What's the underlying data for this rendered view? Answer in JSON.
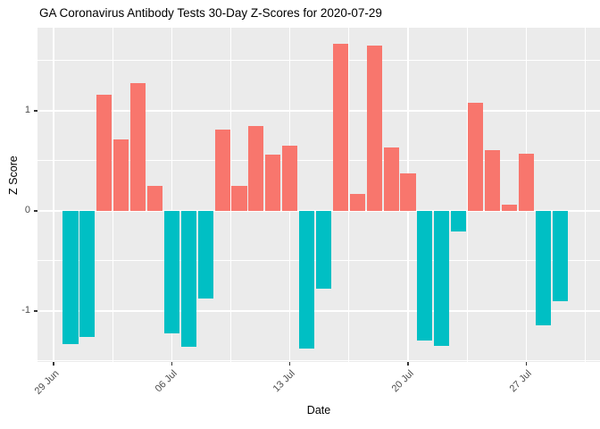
{
  "title": "GA Coronavirus Antibody Tests 30-Day Z-Scores for 2020-07-29",
  "colors": {
    "positive_bar": "#F8766D",
    "negative_bar": "#00BFC4",
    "panel_background": "#EBEBEB",
    "gridline": "#FFFFFF",
    "tick_text": "#4D4D4D",
    "axis_text": "#000000"
  },
  "chart_data": {
    "type": "bar",
    "title": "GA Coronavirus Antibody Tests 30-Day Z-Scores for 2020-07-29",
    "xlabel": "Date",
    "ylabel": "Z Score",
    "grid": true,
    "legend": false,
    "ylim": [
      -1.51,
      1.83
    ],
    "x": [
      "2020-06-30",
      "2020-07-01",
      "2020-07-02",
      "2020-07-03",
      "2020-07-04",
      "2020-07-05",
      "2020-07-06",
      "2020-07-07",
      "2020-07-08",
      "2020-07-09",
      "2020-07-10",
      "2020-07-11",
      "2020-07-12",
      "2020-07-13",
      "2020-07-14",
      "2020-07-15",
      "2020-07-16",
      "2020-07-17",
      "2020-07-18",
      "2020-07-19",
      "2020-07-20",
      "2020-07-21",
      "2020-07-22",
      "2020-07-23",
      "2020-07-24",
      "2020-07-25",
      "2020-07-26",
      "2020-07-27",
      "2020-07-28",
      "2020-07-29"
    ],
    "values": [
      -1.33,
      -1.26,
      1.16,
      0.71,
      1.28,
      0.25,
      -1.22,
      -1.36,
      -0.88,
      0.81,
      0.25,
      0.85,
      0.56,
      0.65,
      -1.38,
      -0.78,
      1.67,
      0.17,
      1.65,
      0.63,
      0.37,
      -1.3,
      -1.35,
      -0.21,
      1.08,
      0.61,
      0.06,
      0.57,
      -1.14,
      -0.9
    ],
    "y_major_ticks": [
      {
        "label": "1",
        "value": 1
      },
      {
        "label": "0",
        "value": 0
      },
      {
        "label": "-1",
        "value": -1
      }
    ],
    "y_minor_values": [
      1.5,
      0.5,
      -0.5,
      -1.5
    ],
    "x_major_ticks": [
      {
        "label": "29 Jun",
        "day_index": -1
      },
      {
        "label": "06 Jul",
        "day_index": 6
      },
      {
        "label": "13 Jul",
        "day_index": 13
      },
      {
        "label": "20 Jul",
        "day_index": 20
      },
      {
        "label": "27 Jul",
        "day_index": 27
      }
    ],
    "x_minor_day_indices": [
      2.5,
      9.5,
      16.5,
      23.5,
      30.5
    ]
  }
}
